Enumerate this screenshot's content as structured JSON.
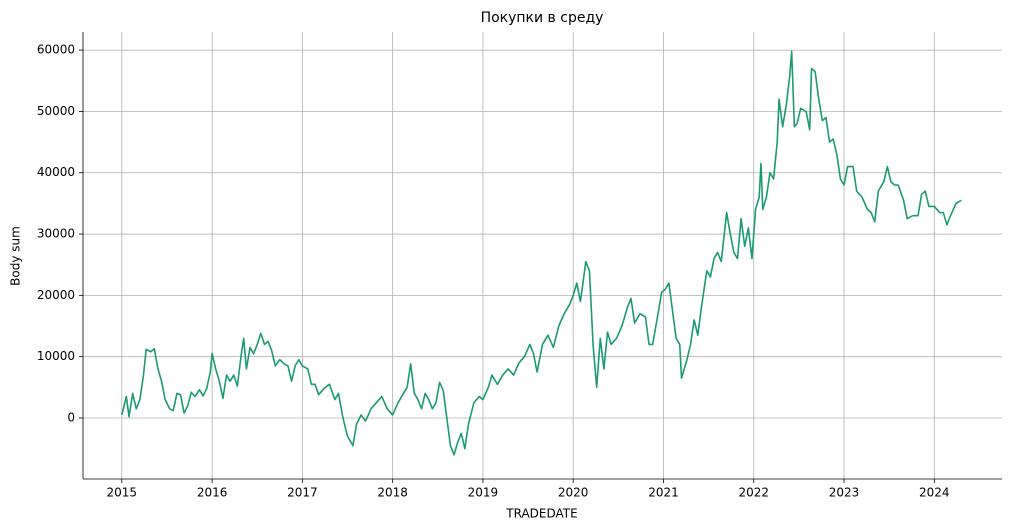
{
  "chart_data": {
    "type": "line",
    "title": "Покупки в среду",
    "x_label": "TRADEDATE",
    "y_label": "Body sum",
    "x": [
      2015.0,
      2015.05,
      2015.08,
      2015.12,
      2015.16,
      2015.2,
      2015.24,
      2015.27,
      2015.32,
      2015.36,
      2015.4,
      2015.44,
      2015.48,
      2015.53,
      2015.57,
      2015.61,
      2015.65,
      2015.69,
      2015.73,
      2015.77,
      2015.81,
      2015.86,
      2015.9,
      2015.94,
      2015.98,
      2016.0,
      2016.04,
      2016.08,
      2016.12,
      2016.16,
      2016.2,
      2016.24,
      2016.28,
      2016.32,
      2016.35,
      2016.38,
      2016.42,
      2016.46,
      2016.5,
      2016.54,
      2016.58,
      2016.62,
      2016.66,
      2016.7,
      2016.75,
      2016.8,
      2016.84,
      2016.88,
      2016.92,
      2016.96,
      2017.0,
      2017.06,
      2017.1,
      2017.14,
      2017.18,
      2017.24,
      2017.3,
      2017.36,
      2017.4,
      2017.45,
      2017.5,
      2017.56,
      2017.6,
      2017.65,
      2017.7,
      2017.76,
      2017.82,
      2017.88,
      2017.94,
      2018.0,
      2018.06,
      2018.12,
      2018.16,
      2018.2,
      2018.24,
      2018.28,
      2018.32,
      2018.36,
      2018.4,
      2018.44,
      2018.48,
      2018.52,
      2018.56,
      2018.6,
      2018.64,
      2018.68,
      2018.72,
      2018.76,
      2018.8,
      2018.84,
      2018.9,
      2018.96,
      2019.0,
      2019.06,
      2019.1,
      2019.16,
      2019.22,
      2019.28,
      2019.34,
      2019.4,
      2019.46,
      2019.52,
      2019.56,
      2019.6,
      2019.66,
      2019.72,
      2019.78,
      2019.84,
      2019.9,
      2019.96,
      2020.0,
      2020.04,
      2020.08,
      2020.14,
      2020.18,
      2020.22,
      2020.26,
      2020.3,
      2020.34,
      2020.38,
      2020.42,
      2020.48,
      2020.54,
      2020.6,
      2020.64,
      2020.68,
      2020.74,
      2020.8,
      2020.84,
      2020.88,
      2020.94,
      2020.98,
      2021.02,
      2021.06,
      2021.1,
      2021.14,
      2021.18,
      2021.2,
      2021.26,
      2021.3,
      2021.34,
      2021.38,
      2021.42,
      2021.48,
      2021.52,
      2021.56,
      2021.6,
      2021.64,
      2021.7,
      2021.74,
      2021.78,
      2021.82,
      2021.86,
      2021.9,
      2021.94,
      2021.98,
      2022.02,
      2022.06,
      2022.08,
      2022.1,
      2022.14,
      2022.18,
      2022.22,
      2022.26,
      2022.28,
      2022.32,
      2022.36,
      2022.4,
      2022.42,
      2022.45,
      2022.48,
      2022.52,
      2022.58,
      2022.62,
      2022.64,
      2022.68,
      2022.72,
      2022.76,
      2022.8,
      2022.84,
      2022.88,
      2022.92,
      2022.96,
      2023.0,
      2023.04,
      2023.1,
      2023.14,
      2023.2,
      2023.26,
      2023.3,
      2023.34,
      2023.38,
      2023.44,
      2023.48,
      2023.52,
      2023.56,
      2023.6,
      2023.66,
      2023.7,
      2023.76,
      2023.82,
      2023.86,
      2023.9,
      2023.94,
      2024.0,
      2024.06,
      2024.1,
      2024.14,
      2024.18,
      2024.24,
      2024.3
    ],
    "series": [
      {
        "color": "#1b9a74",
        "values": [
          500,
          3500,
          200,
          4000,
          1500,
          3000,
          7000,
          11200,
          10800,
          11300,
          8000,
          6000,
          3000,
          1500,
          1200,
          4000,
          3800,
          800,
          2000,
          4200,
          3500,
          4600,
          3600,
          4800,
          7500,
          10500,
          8000,
          6000,
          3200,
          7000,
          6000,
          7000,
          5200,
          10000,
          13000,
          8000,
          11500,
          10500,
          12000,
          13800,
          12000,
          12500,
          11000,
          8500,
          9500,
          8800,
          8500,
          6000,
          8500,
          9500,
          8500,
          8000,
          5500,
          5500,
          3800,
          4800,
          5500,
          3000,
          4000,
          0,
          -3000,
          -4500,
          -1000,
          500,
          -500,
          1500,
          2500,
          3500,
          1500,
          500,
          2500,
          4000,
          5000,
          8800,
          4000,
          3000,
          1500,
          4000,
          3000,
          1500,
          2500,
          5800,
          4500,
          0,
          -4500,
          -6000,
          -4000,
          -2500,
          -5000,
          -1000,
          2500,
          3500,
          3000,
          5000,
          7000,
          5500,
          7000,
          8000,
          7000,
          9000,
          10000,
          12000,
          10500,
          7500,
          12000,
          13500,
          11500,
          15000,
          17000,
          18500,
          20000,
          22000,
          19000,
          25500,
          24000,
          12000,
          5000,
          13000,
          8000,
          14000,
          12000,
          13000,
          15000,
          18000,
          19500,
          15500,
          17000,
          16500,
          12000,
          12000,
          17000,
          20500,
          21000,
          22000,
          17500,
          13000,
          12000,
          6500,
          9500,
          12000,
          16000,
          13500,
          18000,
          24000,
          23000,
          26000,
          27000,
          25500,
          33500,
          30000,
          27000,
          26000,
          32500,
          28000,
          31000,
          26000,
          34000,
          36000,
          41500,
          34000,
          36000,
          40000,
          39000,
          45000,
          52000,
          47500,
          51000,
          56000,
          59800,
          47500,
          48000,
          50500,
          50000,
          47000,
          57000,
          56500,
          52000,
          48500,
          49000,
          45000,
          45500,
          43000,
          39000,
          38000,
          41000,
          41000,
          37000,
          36000,
          34000,
          33500,
          32000,
          37000,
          38500,
          41000,
          38500,
          38000,
          38000,
          35500,
          32500,
          33000,
          33000,
          36500,
          37000,
          34500,
          34500,
          33500,
          33500,
          31500,
          33000,
          35000,
          35500
        ]
      }
    ],
    "xlim": [
      2014.57,
      2024.75
    ],
    "xticks": [
      2015,
      2016,
      2017,
      2018,
      2019,
      2020,
      2021,
      2022,
      2023,
      2024
    ],
    "ylim": [
      -9950,
      62950
    ],
    "yticks": [
      0,
      10000,
      20000,
      30000,
      40000,
      50000,
      60000
    ],
    "grid": true
  }
}
